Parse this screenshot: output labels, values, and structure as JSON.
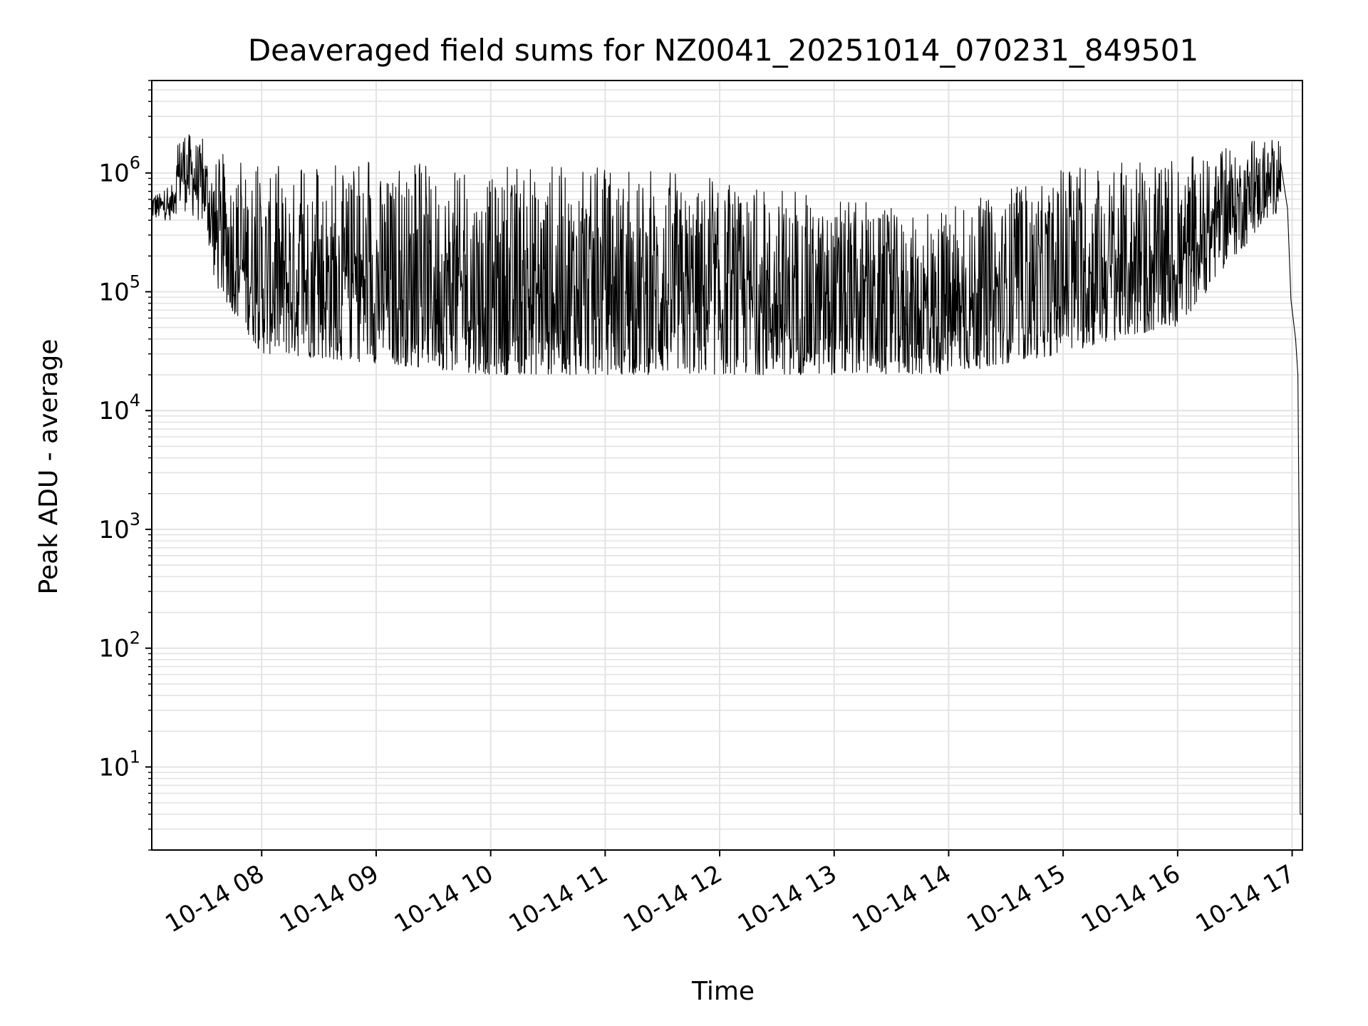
{
  "chart_data": {
    "type": "line",
    "title": "Deaveraged field sums for NZ0041_20251014_070231_849501",
    "xlabel": "Time",
    "ylabel": "Peak ADU - average",
    "yscale": "log",
    "ylim": [
      2,
      6000000
    ],
    "xlim_hours": [
      7.04,
      17.09
    ],
    "grid": true,
    "x_ticks": [
      {
        "hour": 8,
        "label": "10-14 08"
      },
      {
        "hour": 9,
        "label": "10-14 09"
      },
      {
        "hour": 10,
        "label": "10-14 10"
      },
      {
        "hour": 11,
        "label": "10-14 11"
      },
      {
        "hour": 12,
        "label": "10-14 12"
      },
      {
        "hour": 13,
        "label": "10-14 13"
      },
      {
        "hour": 14,
        "label": "10-14 14"
      },
      {
        "hour": 15,
        "label": "10-14 15"
      },
      {
        "hour": 16,
        "label": "10-14 16"
      },
      {
        "hour": 17,
        "label": "10-14 17"
      }
    ],
    "y_ticks": [
      {
        "value": 10,
        "base": "10",
        "exp": "1"
      },
      {
        "value": 100,
        "base": "10",
        "exp": "2"
      },
      {
        "value": 1000,
        "base": "10",
        "exp": "3"
      },
      {
        "value": 10000,
        "base": "10",
        "exp": "4"
      },
      {
        "value": 100000,
        "base": "10",
        "exp": "5"
      },
      {
        "value": 1000000,
        "base": "10",
        "exp": "6"
      }
    ],
    "series": [
      {
        "name": "field sum",
        "color": "#000000",
        "note": "dense noisy series; envelope values (hours, ADU) estimated from the figure",
        "envelope": [
          {
            "hour": 7.04,
            "low": 400000,
            "high": 700000
          },
          {
            "hour": 7.2,
            "low": 400000,
            "high": 650000
          },
          {
            "hour": 7.3,
            "low": 500000,
            "high": 2500000
          },
          {
            "hour": 7.5,
            "low": 350000,
            "high": 1600000
          },
          {
            "hour": 7.6,
            "low": 110000,
            "high": 1300000
          },
          {
            "hour": 8.0,
            "low": 30000,
            "high": 900000
          },
          {
            "hour": 9.0,
            "low": 25000,
            "high": 1000000
          },
          {
            "hour": 10.0,
            "low": 20000,
            "high": 900000
          },
          {
            "hour": 11.0,
            "low": 20000,
            "high": 1000000
          },
          {
            "hour": 12.0,
            "low": 20000,
            "high": 700000
          },
          {
            "hour": 13.0,
            "low": 20000,
            "high": 500000
          },
          {
            "hour": 14.0,
            "low": 20000,
            "high": 400000
          },
          {
            "hour": 14.5,
            "low": 25000,
            "high": 600000
          },
          {
            "hour": 15.0,
            "low": 30000,
            "high": 900000
          },
          {
            "hour": 15.5,
            "low": 40000,
            "high": 1000000
          },
          {
            "hour": 16.0,
            "low": 50000,
            "high": 1000000
          },
          {
            "hour": 16.4,
            "low": 150000,
            "high": 1300000
          },
          {
            "hour": 16.9,
            "low": 500000,
            "high": 1700000
          }
        ],
        "tail": [
          {
            "hour": 16.9,
            "value": 1200000
          },
          {
            "hour": 16.96,
            "value": 500000
          },
          {
            "hour": 16.99,
            "value": 85000
          },
          {
            "hour": 17.03,
            "value": 40000
          },
          {
            "hour": 17.05,
            "value": 20000
          },
          {
            "hour": 17.065,
            "value": 300
          },
          {
            "hour": 17.07,
            "value": 4
          },
          {
            "hour": 17.09,
            "value": 4
          }
        ]
      }
    ]
  }
}
